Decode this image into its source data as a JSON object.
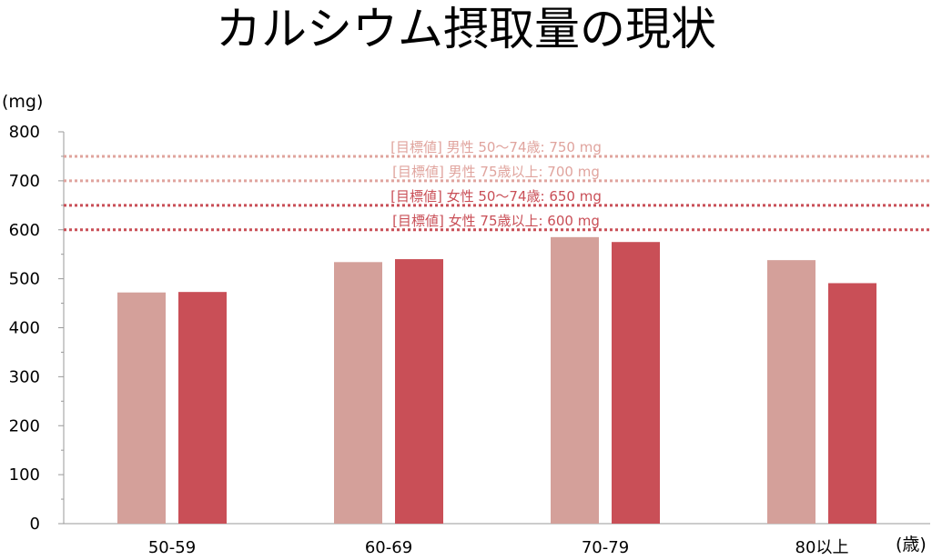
{
  "chart_data": {
    "type": "bar",
    "title": "カルシウム摂取量の現状",
    "ylabel": "(mg)",
    "xlabel": "(歳)",
    "ylim": [
      0,
      800
    ],
    "yticks": [
      "0",
      "100",
      "200",
      "300",
      "400",
      "500",
      "600",
      "700",
      "800"
    ],
    "categories": [
      "50-59",
      "60-69",
      "70-79",
      "80以上"
    ],
    "series": [
      {
        "values": [
          472,
          534,
          585,
          538
        ],
        "color": "#d4a09a"
      },
      {
        "values": [
          473,
          540,
          575,
          491
        ],
        "color": "#c94f57"
      }
    ],
    "target_lines": [
      {
        "label": "[目標値] 男性 50〜74歳: 750 mg",
        "value": 750,
        "color": "#e0a49e"
      },
      {
        "label": "[目標値] 男性 75歳以上: 700 mg",
        "value": 700,
        "color": "#e0a49e"
      },
      {
        "label": "[目標値] 女性 50〜74歳: 650 mg",
        "value": 650,
        "color": "#c94f57"
      },
      {
        "label": "[目標値] 女性 75歳以上: 600 mg",
        "value": 600,
        "color": "#c94f57"
      }
    ],
    "grid": false,
    "legend": "none"
  }
}
